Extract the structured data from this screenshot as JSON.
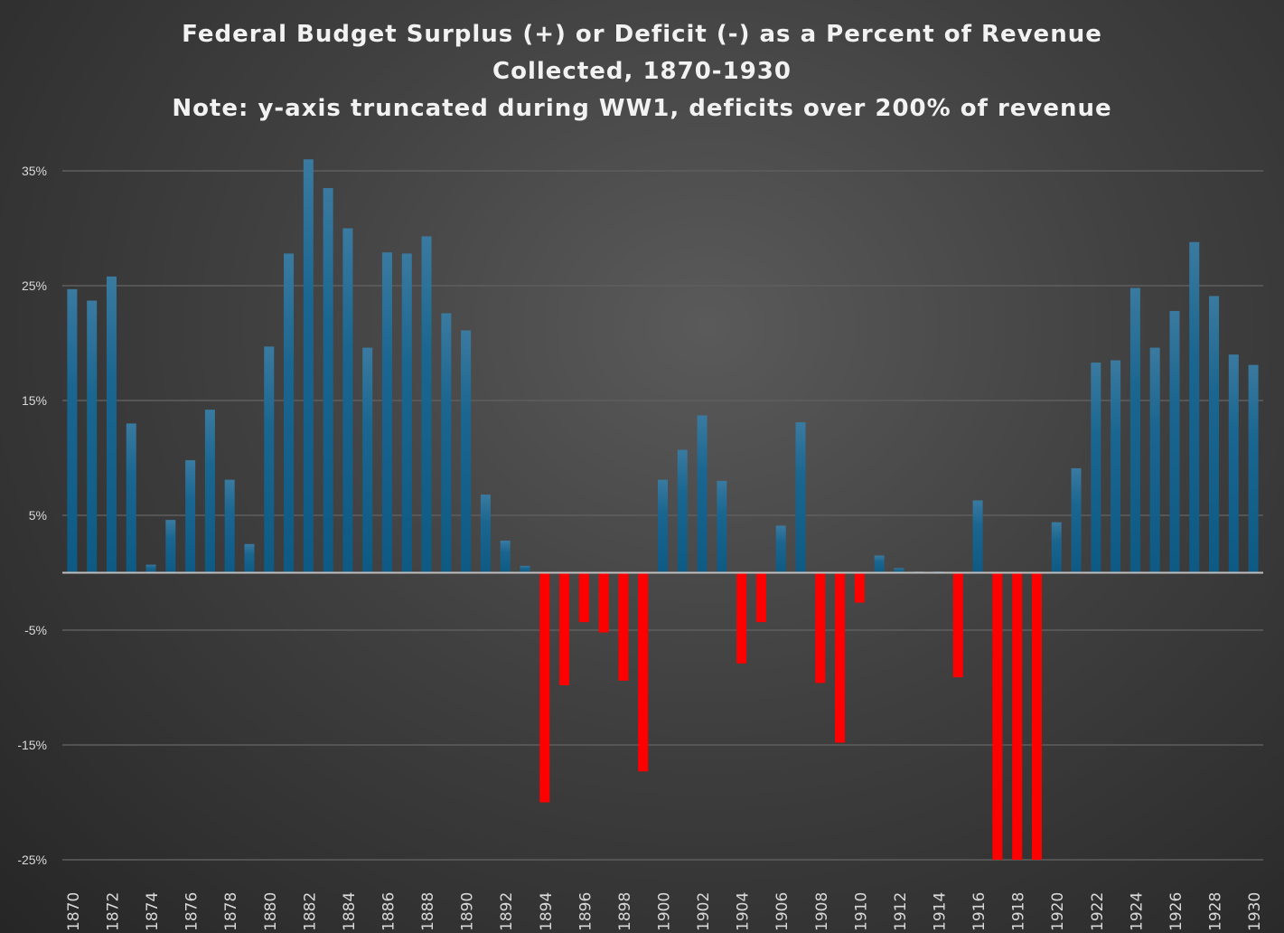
{
  "chart_data": {
    "type": "bar",
    "title": [
      "Federal Budget Surplus (+) or Deficit (-) as a Percent of Revenue",
      "Collected, 1870-1930",
      "Note: y-axis truncated during WW1, deficits over 200% of revenue"
    ],
    "xlabel": "",
    "ylabel": "",
    "ylim": [
      -25,
      38
    ],
    "yticks": [
      35,
      25,
      15,
      5,
      -5,
      -15,
      -25
    ],
    "ytick_labels": [
      "35%",
      "25%",
      "15%",
      "5%",
      "-5%",
      "-15%",
      "-25%"
    ],
    "grid": true,
    "legend": "none",
    "colors": {
      "surplus": "#1a6a96",
      "deficit": "#ff0000"
    },
    "categories": [
      1870,
      1871,
      1872,
      1873,
      1874,
      1875,
      1876,
      1877,
      1878,
      1879,
      1880,
      1881,
      1882,
      1883,
      1884,
      1885,
      1886,
      1887,
      1888,
      1889,
      1890,
      1891,
      1892,
      1893,
      1894,
      1895,
      1896,
      1897,
      1898,
      1899,
      1900,
      1901,
      1902,
      1903,
      1904,
      1905,
      1906,
      1907,
      1908,
      1909,
      1910,
      1911,
      1912,
      1913,
      1914,
      1915,
      1916,
      1917,
      1918,
      1919,
      1920,
      1921,
      1922,
      1923,
      1924,
      1925,
      1926,
      1927,
      1928,
      1929,
      1930
    ],
    "values": [
      24.7,
      23.7,
      25.8,
      13.0,
      0.7,
      4.6,
      9.8,
      14.2,
      8.1,
      2.5,
      19.7,
      27.8,
      36.0,
      33.5,
      30.0,
      19.6,
      27.9,
      27.8,
      29.3,
      22.6,
      21.1,
      6.8,
      2.8,
      0.6,
      -20.0,
      -9.8,
      -4.3,
      -5.2,
      -9.4,
      -17.3,
      8.1,
      10.7,
      13.7,
      8.0,
      -7.9,
      -4.3,
      4.1,
      13.1,
      -9.6,
      -14.8,
      -2.6,
      1.5,
      0.4,
      0.1,
      0.1,
      -9.1,
      6.3,
      -25,
      -25,
      -25,
      4.4,
      9.1,
      18.3,
      18.5,
      24.8,
      19.6,
      22.8,
      28.8,
      24.1,
      19.0,
      18.1
    ]
  }
}
